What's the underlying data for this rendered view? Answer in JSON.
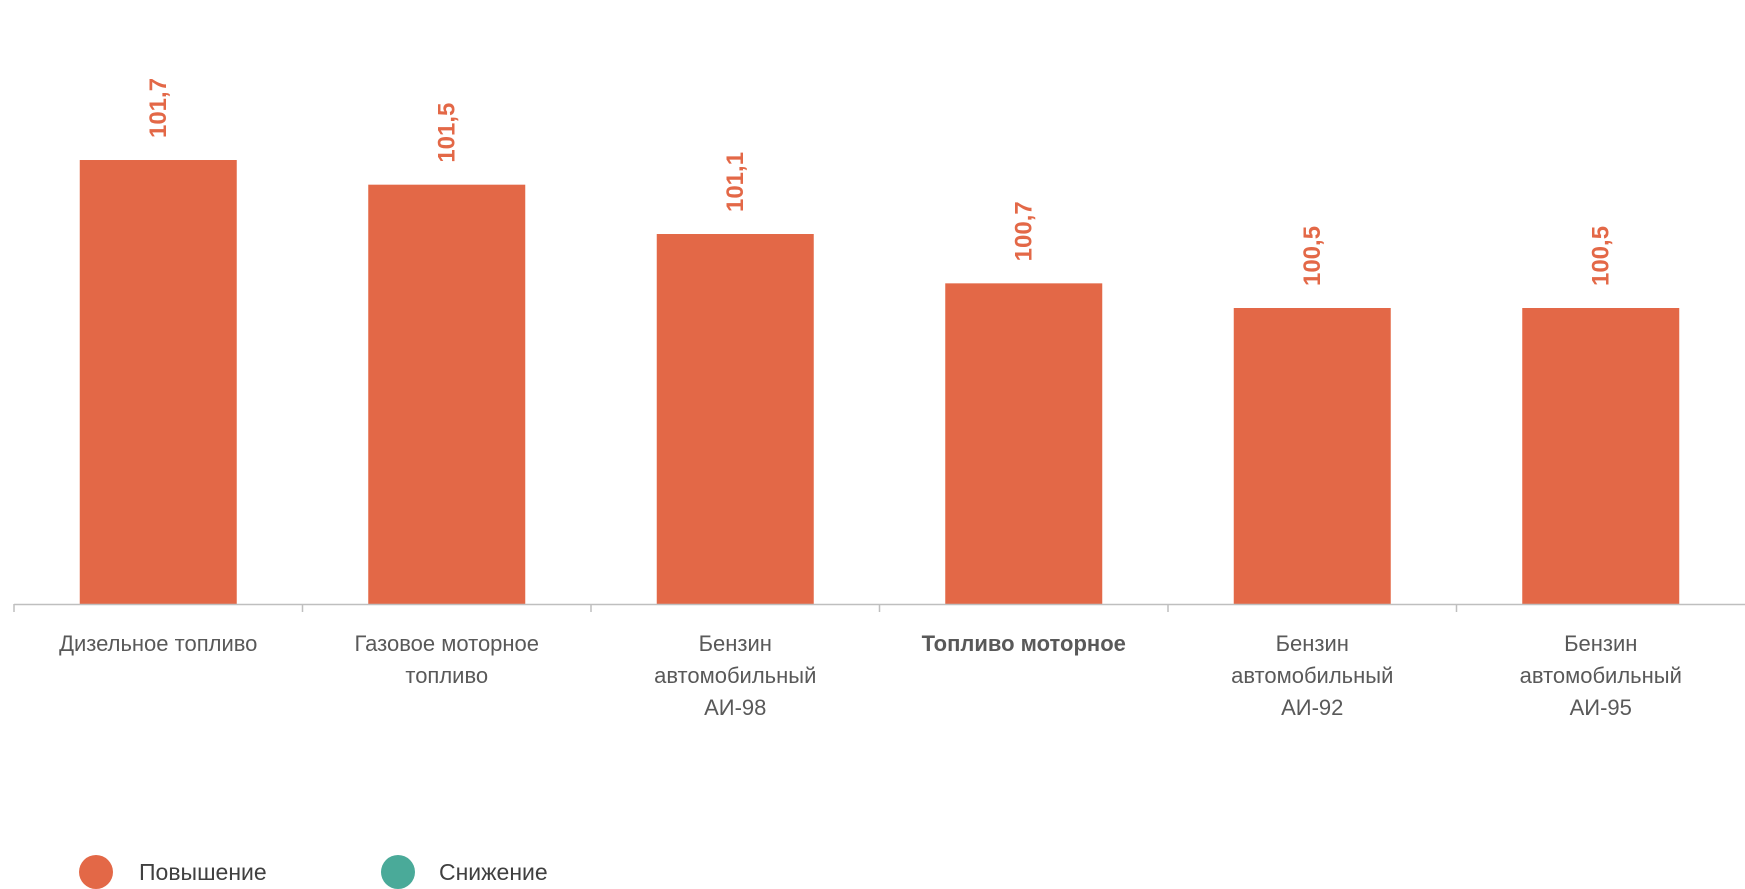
{
  "chart_data": {
    "type": "bar",
    "title": "",
    "xlabel": "",
    "ylabel": "",
    "ylim": [
      98.1,
      101.9
    ],
    "grid": false,
    "legend_placement": "bottom-left",
    "categories": [
      {
        "lines": [
          "Дизельное топливо"
        ],
        "bold": false
      },
      {
        "lines": [
          "Газовое моторное",
          "топливо"
        ],
        "bold": false
      },
      {
        "lines": [
          "Бензин",
          "автомобильный",
          "АИ-98"
        ],
        "bold": false
      },
      {
        "lines": [
          "Топливо моторное"
        ],
        "bold": true
      },
      {
        "lines": [
          "Бензин",
          "автомобильный",
          "АИ-92"
        ],
        "bold": false
      },
      {
        "lines": [
          "Бензин",
          "автомобильный",
          "АИ-95"
        ],
        "bold": false
      }
    ],
    "values": [
      101.7,
      101.5,
      101.1,
      100.7,
      100.5,
      100.5
    ],
    "value_labels": [
      "101,7",
      "101,5",
      "101,1",
      "100,7",
      "100,5",
      "100,5"
    ],
    "series": [
      {
        "name": "Повышение",
        "color": "#E36847"
      },
      {
        "name": "Снижение",
        "color": "#4AAA99"
      }
    ],
    "axis_color": "#BFBFBF"
  }
}
